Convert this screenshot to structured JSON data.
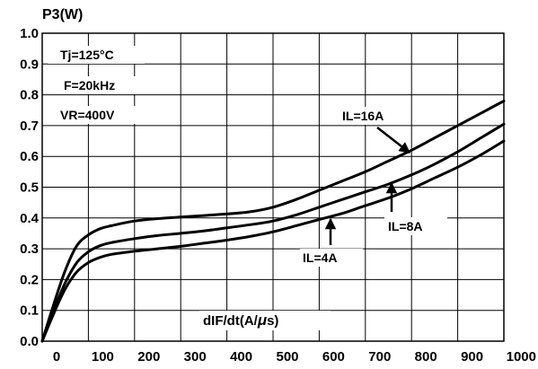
{
  "chart_data": {
    "type": "line",
    "ylabel": "P3(W)",
    "xlabel_main": "dIF/dt(A/",
    "xlabel_mu": "μ",
    "xlabel_end": "s)",
    "xlim": [
      0,
      1000
    ],
    "ylim": [
      0,
      1.0
    ],
    "xticks": [
      "0",
      "100",
      "200",
      "300",
      "400",
      "500",
      "600",
      "700",
      "800",
      "900",
      "1000"
    ],
    "yticks": [
      "0.0",
      "0.1",
      "0.2",
      "0.3",
      "0.4",
      "0.5",
      "0.6",
      "0.7",
      "0.8",
      "0.9",
      "1.0"
    ],
    "grid": true,
    "conditions": [
      "Tj=125°C",
      "F=20kHz",
      "VR=400V"
    ],
    "series": [
      {
        "name": "IL=16A",
        "x": [
          0,
          25,
          50,
          75,
          100,
          125,
          150,
          200,
          250,
          300,
          350,
          400,
          450,
          500,
          550,
          600,
          650,
          700,
          750,
          800,
          850,
          900,
          950,
          1000
        ],
        "y": [
          0.0,
          0.12,
          0.23,
          0.31,
          0.345,
          0.365,
          0.375,
          0.39,
          0.398,
          0.403,
          0.408,
          0.413,
          0.42,
          0.435,
          0.46,
          0.49,
          0.52,
          0.55,
          0.585,
          0.62,
          0.66,
          0.7,
          0.74,
          0.78
        ]
      },
      {
        "name": "IL=8A",
        "x": [
          0,
          25,
          50,
          75,
          100,
          125,
          150,
          200,
          250,
          300,
          350,
          400,
          450,
          500,
          550,
          600,
          650,
          700,
          750,
          800,
          850,
          900,
          950,
          1000
        ],
        "y": [
          0.0,
          0.1,
          0.19,
          0.255,
          0.29,
          0.31,
          0.32,
          0.333,
          0.343,
          0.35,
          0.358,
          0.368,
          0.378,
          0.39,
          0.41,
          0.435,
          0.46,
          0.485,
          0.51,
          0.54,
          0.575,
          0.615,
          0.66,
          0.705
        ]
      },
      {
        "name": "IL=4A",
        "x": [
          0,
          25,
          50,
          75,
          100,
          125,
          150,
          200,
          250,
          300,
          350,
          400,
          450,
          500,
          550,
          600,
          650,
          700,
          750,
          800,
          850,
          900,
          950,
          1000
        ],
        "y": [
          0.0,
          0.09,
          0.17,
          0.225,
          0.255,
          0.272,
          0.282,
          0.292,
          0.3,
          0.308,
          0.318,
          0.328,
          0.34,
          0.355,
          0.375,
          0.395,
          0.415,
          0.44,
          0.465,
          0.495,
          0.53,
          0.565,
          0.605,
          0.65
        ]
      }
    ]
  }
}
